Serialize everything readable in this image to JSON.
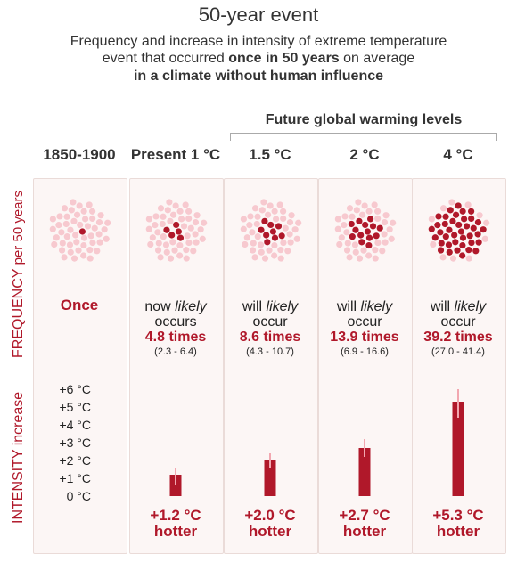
{
  "title": "50-year event",
  "subtitle": {
    "line1": "Frequency and increase in intensity of extreme temperature",
    "line2_pre": "event that occurred ",
    "line2_bold": "once in 50 years",
    "line2_post": " on average",
    "line3": "in a climate without human influence"
  },
  "future_label": "Future global warming levels",
  "frequency_axis": {
    "main": "FREQUENCY",
    "sub": "per 50 years"
  },
  "intensity_axis": {
    "main": "INTENSITY increase"
  },
  "columns": [
    {
      "label": "1850-1900",
      "freq_line1": "Once",
      "freq_line2": "",
      "freq_value": "",
      "freq_range": "",
      "hot_value": "",
      "hot_word": ""
    },
    {
      "label": "Present 1 °C",
      "freq_line1": "now ",
      "freq_line1_em": "likely",
      "freq_line2": "occurs",
      "freq_value": "4.8 times",
      "freq_range": "(2.3 - 6.4)",
      "hot_value": "+1.2 °C",
      "hot_word": "hotter"
    },
    {
      "label": "1.5 °C",
      "freq_line1": "will ",
      "freq_line1_em": "likely",
      "freq_line2": "occur",
      "freq_value": "8.6 times",
      "freq_range": "(4.3 - 10.7)",
      "hot_value": "+2.0 °C",
      "hot_word": "hotter"
    },
    {
      "label": "2 °C",
      "freq_line1": "will ",
      "freq_line1_em": "likely",
      "freq_line2": "occur",
      "freq_value": "13.9 times",
      "freq_range": "(6.9 - 16.6)",
      "hot_value": "+2.7 °C",
      "hot_word": "hotter"
    },
    {
      "label": "4 °C",
      "freq_line1": "will ",
      "freq_line1_em": "likely",
      "freq_line2": "occur",
      "freq_value": "39.2 times",
      "freq_range": "(27.0 - 41.4)",
      "hot_value": "+5.3 °C",
      "hot_word": "hotter"
    }
  ],
  "intensity_ticks": [
    "+6 °C",
    "+5 °C",
    "+4 °C",
    "+3 °C",
    "+2 °C",
    "+1 °C",
    "0 °C"
  ],
  "colors": {
    "accent": "#b0182a",
    "dot_light": "#f7c9cf",
    "panel": "#fcf6f5",
    "error_bar": "#f2a7b0"
  },
  "chart_data": {
    "type": "bar",
    "categories": [
      "1850-1900",
      "Present 1 °C",
      "1.5 °C",
      "2 °C",
      "4 °C"
    ],
    "frequency_dots": [
      1,
      5,
      9,
      14,
      39
    ],
    "series": [
      {
        "values": [
          0,
          1.2,
          2.0,
          2.7,
          5.3
        ],
        "ranges": [
          null,
          [
            0.6,
            1.6
          ],
          [
            1.6,
            2.4
          ],
          [
            2.2,
            3.2
          ],
          [
            4.4,
            6.0
          ]
        ]
      }
    ],
    "ylim": [
      0,
      6
    ],
    "ylabel": "INTENSITY increase"
  }
}
